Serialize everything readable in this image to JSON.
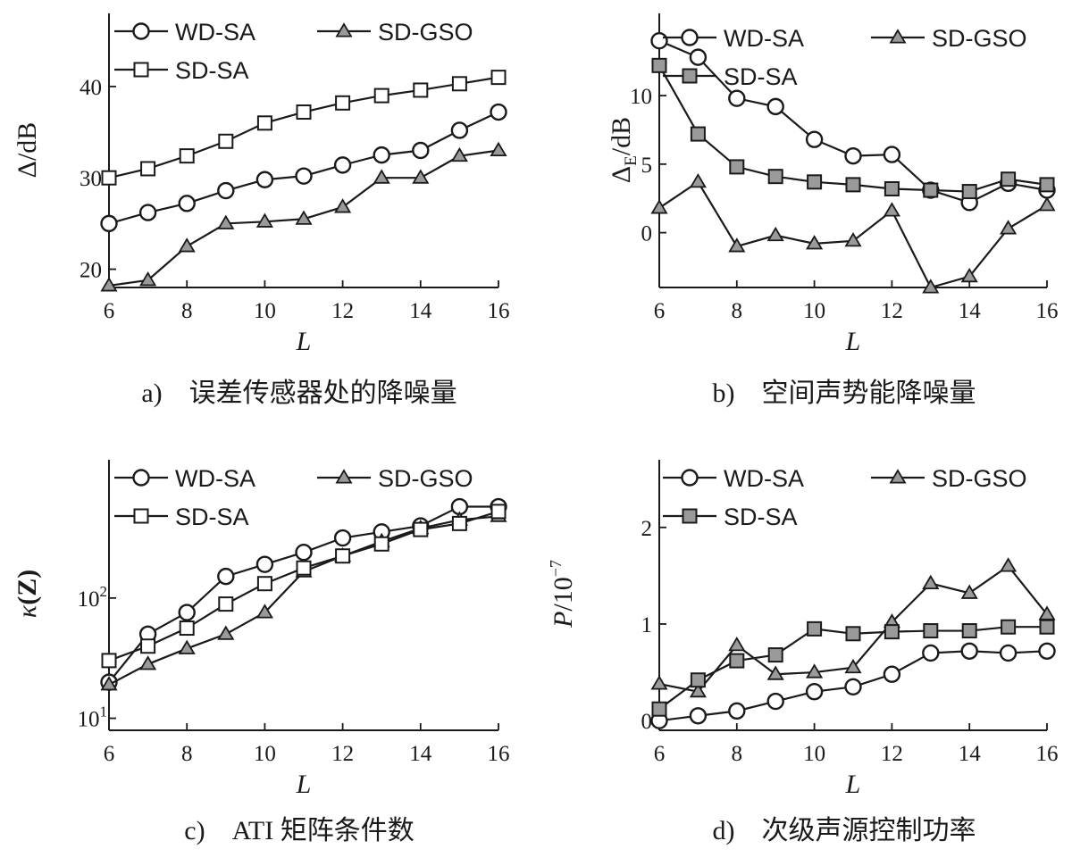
{
  "chart_data": [
    {
      "type": "line",
      "caption": "a)　误差传感器处的降噪量",
      "xlabel": "L",
      "ylabel": "Δ/dB",
      "xlim": [
        6,
        16
      ],
      "ylim": [
        18,
        48
      ],
      "xticks": [
        6,
        8,
        10,
        12,
        14,
        16
      ],
      "yticks": [
        20,
        30,
        40
      ],
      "legend": [
        {
          "name": "WD-SA",
          "marker": "circle"
        },
        {
          "name": "SD-GSO",
          "marker": "triangle"
        },
        {
          "name": "SD-SA",
          "marker": "square"
        }
      ],
      "x": [
        6,
        7,
        8,
        9,
        10,
        11,
        12,
        13,
        14,
        15,
        16
      ],
      "series": [
        {
          "name": "WD-SA",
          "marker": "circle",
          "values": [
            25,
            26.2,
            27.2,
            28.6,
            29.8,
            30.2,
            31.4,
            32.5,
            33,
            35.2,
            37.2
          ]
        },
        {
          "name": "SD-GSO",
          "marker": "triangle",
          "values": [
            18.2,
            18.8,
            22.5,
            25,
            25.2,
            25.5,
            26.8,
            30,
            30,
            32.4,
            33
          ]
        },
        {
          "name": "SD-SA",
          "marker": "square",
          "values": [
            30,
            31,
            32.4,
            34,
            36,
            37.2,
            38.2,
            39,
            39.6,
            40.3,
            41
          ]
        }
      ]
    },
    {
      "type": "line",
      "caption": "b)　空间声势能降噪量",
      "xlabel": "L",
      "ylabel": "ΔE/dB",
      "ylabel_main": "Δ",
      "ylabel_sub": "E",
      "ylabel_suffix": "/dB",
      "xlim": [
        6,
        16
      ],
      "ylim": [
        -4,
        16
      ],
      "xticks": [
        6,
        8,
        10,
        12,
        14,
        16
      ],
      "yticks": [
        0,
        5,
        10
      ],
      "legend": [
        {
          "name": "WD-SA",
          "marker": "circle"
        },
        {
          "name": "SD-GSO",
          "marker": "triangle"
        },
        {
          "name": "SD-SA",
          "marker": "square"
        }
      ],
      "x": [
        6,
        7,
        8,
        9,
        10,
        11,
        12,
        13,
        14,
        15,
        16
      ],
      "series": [
        {
          "name": "WD-SA",
          "marker": "circle",
          "values": [
            14,
            12.8,
            9.8,
            9.2,
            6.8,
            5.6,
            5.7,
            3.1,
            2.2,
            3.6,
            3.1
          ]
        },
        {
          "name": "SD-GSO",
          "marker": "triangle",
          "values": [
            1.8,
            3.7,
            -1,
            -0.2,
            -0.8,
            -0.6,
            1.6,
            -4,
            -3.2,
            0.3,
            2
          ]
        },
        {
          "name": "SD-SA",
          "marker": "square",
          "values": [
            12.2,
            7.2,
            4.8,
            4.1,
            3.7,
            3.5,
            3.2,
            3.1,
            3,
            3.9,
            3.5
          ]
        }
      ]
    },
    {
      "type": "line",
      "caption": "c)　ATI 矩阵条件数",
      "xlabel": "L",
      "ylabel": "κ(Z)",
      "ylabel_kappa": "κ",
      "ylabel_rest": "(Z)",
      "yscale": "log",
      "xlim": [
        6,
        16
      ],
      "ylim_log10": [
        0.9,
        3.15
      ],
      "xticks": [
        6,
        8,
        10,
        12,
        14,
        16
      ],
      "yticks": [
        {
          "log10": 1,
          "base": "10",
          "exp": "1"
        },
        {
          "log10": 2,
          "base": "10",
          "exp": "2"
        }
      ],
      "legend": [
        {
          "name": "WD-SA",
          "marker": "circle"
        },
        {
          "name": "SD-GSO",
          "marker": "triangle"
        },
        {
          "name": "SD-SA",
          "marker": "square"
        }
      ],
      "x": [
        6,
        7,
        8,
        9,
        10,
        11,
        12,
        13,
        14,
        15,
        16
      ],
      "series": [
        {
          "name": "WD-SA",
          "marker": "circle",
          "values_log10": [
            1.3,
            1.7,
            1.88,
            2.18,
            2.28,
            2.38,
            2.5,
            2.55,
            2.6,
            2.76,
            2.76
          ]
        },
        {
          "name": "SD-GSO",
          "marker": "triangle",
          "values_log10": [
            1.28,
            1.45,
            1.58,
            1.7,
            1.88,
            2.22,
            2.35,
            2.47,
            2.58,
            2.65,
            2.68
          ]
        },
        {
          "name": "SD-SA",
          "marker": "square",
          "values_log10": [
            1.48,
            1.6,
            1.75,
            1.95,
            2.12,
            2.25,
            2.35,
            2.45,
            2.57,
            2.62,
            2.72
          ]
        }
      ]
    },
    {
      "type": "line",
      "caption": "d)　次级声源控制功率",
      "xlabel": "L",
      "ylabel": "P/10−7",
      "ylabel_main": "P",
      "ylabel_rest": "/10",
      "ylabel_exp": "−7",
      "xlim": [
        6,
        16
      ],
      "ylim": [
        -0.1,
        2.7
      ],
      "xticks": [
        6,
        8,
        10,
        12,
        14,
        16
      ],
      "yticks": [
        0,
        1,
        2
      ],
      "legend": [
        {
          "name": "WD-SA",
          "marker": "circle"
        },
        {
          "name": "SD-GSO",
          "marker": "triangle"
        },
        {
          "name": "SD-SA",
          "marker": "square"
        }
      ],
      "x": [
        6,
        7,
        8,
        9,
        10,
        11,
        12,
        13,
        14,
        15,
        16
      ],
      "series": [
        {
          "name": "WD-SA",
          "marker": "circle",
          "values": [
            0,
            0.05,
            0.1,
            0.2,
            0.3,
            0.35,
            0.48,
            0.7,
            0.72,
            0.7,
            0.72
          ]
        },
        {
          "name": "SD-GSO",
          "marker": "triangle",
          "values": [
            0.38,
            0.3,
            0.78,
            0.48,
            0.5,
            0.55,
            1.02,
            1.42,
            1.32,
            1.6,
            1.1
          ]
        },
        {
          "name": "SD-SA",
          "marker": "square",
          "values": [
            0.12,
            0.42,
            0.62,
            0.68,
            0.95,
            0.9,
            0.92,
            0.93,
            0.93,
            0.97,
            0.97
          ]
        }
      ]
    }
  ]
}
